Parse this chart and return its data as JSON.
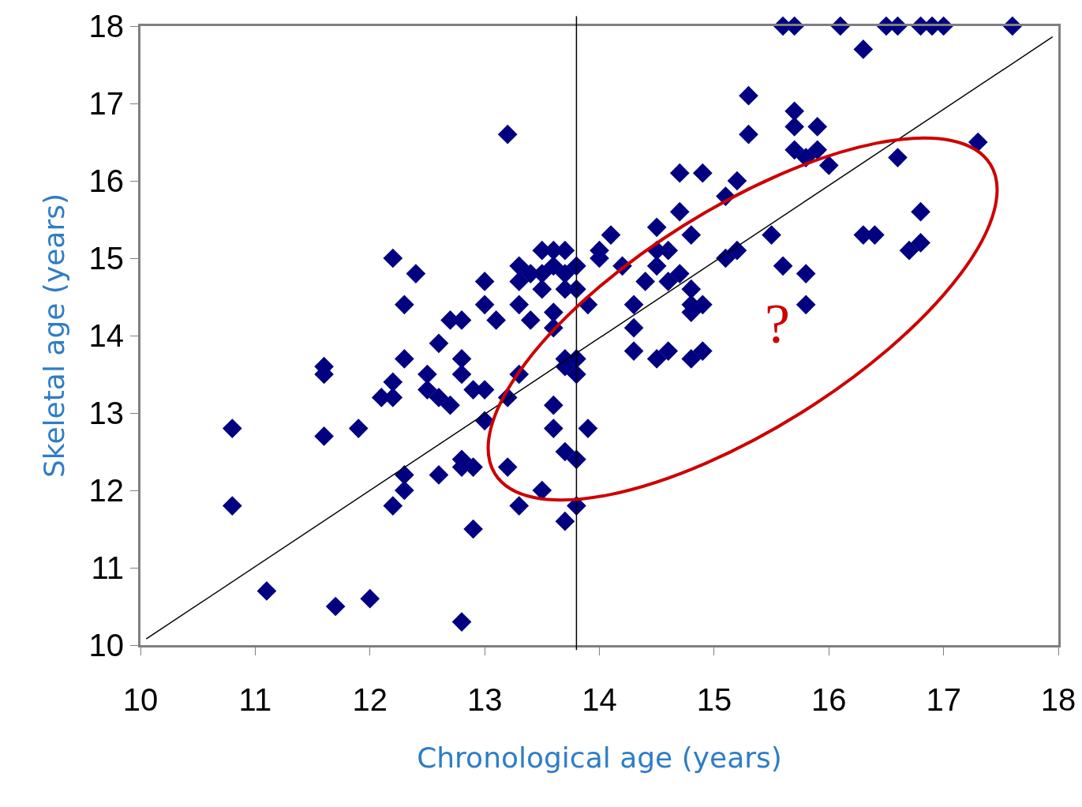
{
  "chart_data": {
    "type": "scatter",
    "xlabel": "Chronological age (years)",
    "ylabel": "Skeletal age (years)",
    "xlim": [
      10,
      18
    ],
    "ylim": [
      10,
      18
    ],
    "xticks": [
      10,
      11,
      12,
      13,
      14,
      15,
      16,
      17,
      18
    ],
    "yticks": [
      10,
      11,
      12,
      13,
      14,
      15,
      16,
      17,
      18
    ],
    "grid": false,
    "annotations": [
      "?"
    ],
    "ref_lines": [
      {
        "axis": "x",
        "value": 13.8,
        "color": "#000000"
      }
    ],
    "series": [
      {
        "color": "#000080",
        "marker": "diamond",
        "x": [
          10.8,
          10.8,
          11.1,
          11.7,
          12.0,
          12.8,
          11.6,
          11.6,
          11.6,
          11.9,
          12.2,
          12.4,
          12.3,
          12.3,
          12.2,
          12.1,
          12.2,
          12.5,
          12.5,
          12.6,
          12.6,
          12.7,
          12.7,
          12.8,
          12.8,
          12.8,
          12.9,
          13.0,
          13.0,
          13.0,
          13.0,
          13.1,
          13.2,
          13.2,
          13.3,
          13.3,
          13.3,
          13.3,
          13.4,
          13.5,
          13.4,
          13.5,
          13.6,
          13.7,
          13.6,
          13.5,
          13.6,
          13.6,
          13.7,
          13.7,
          13.8,
          13.8,
          13.7,
          13.7,
          13.8,
          13.8,
          13.6,
          13.6,
          13.7,
          13.8,
          13.9,
          13.2,
          13.5,
          13.3,
          13.7,
          13.8,
          12.9,
          12.3,
          12.3,
          12.2,
          12.6,
          12.8,
          12.8,
          12.9,
          14.0,
          14.0,
          14.1,
          13.9,
          14.2,
          14.3,
          14.3,
          14.3,
          14.4,
          14.5,
          14.5,
          14.5,
          14.6,
          14.6,
          14.7,
          14.5,
          14.6,
          14.8,
          14.8,
          14.8,
          14.9,
          14.8,
          14.9,
          14.7,
          14.7,
          14.8,
          14.9,
          15.1,
          15.1,
          15.2,
          15.2,
          15.3,
          15.3,
          15.5,
          15.6,
          15.7,
          15.7,
          15.7,
          15.8,
          15.8,
          15.8,
          15.9,
          15.9,
          16.0,
          16.3,
          16.4,
          16.3,
          16.6,
          16.7,
          16.8,
          16.8,
          17.3,
          15.6,
          15.7,
          16.1,
          16.5,
          16.6,
          16.8,
          16.9,
          17.0,
          17.6
        ],
        "values": [
          12.8,
          11.8,
          10.7,
          10.5,
          10.6,
          10.3,
          12.7,
          13.6,
          13.5,
          12.8,
          15.0,
          14.8,
          14.4,
          13.7,
          13.4,
          13.2,
          13.2,
          13.5,
          13.3,
          13.9,
          13.2,
          13.1,
          14.2,
          14.2,
          13.7,
          13.5,
          13.3,
          13.3,
          12.9,
          14.7,
          14.4,
          14.2,
          16.6,
          13.2,
          13.5,
          14.9,
          14.7,
          14.4,
          14.2,
          15.1,
          14.8,
          14.8,
          15.1,
          15.1,
          14.9,
          14.6,
          14.3,
          14.1,
          14.6,
          14.8,
          14.9,
          14.6,
          13.7,
          13.6,
          13.7,
          13.5,
          13.1,
          12.8,
          12.5,
          12.4,
          12.8,
          12.3,
          12.0,
          11.8,
          11.6,
          11.8,
          11.5,
          12.2,
          12.0,
          11.8,
          12.2,
          12.4,
          12.3,
          12.3,
          15.1,
          15.0,
          15.3,
          14.4,
          14.9,
          14.1,
          14.4,
          13.8,
          14.7,
          15.4,
          15.1,
          14.9,
          15.1,
          14.7,
          14.8,
          13.7,
          13.8,
          13.7,
          14.4,
          14.3,
          14.4,
          14.6,
          13.8,
          15.6,
          16.1,
          15.3,
          16.1,
          15.8,
          15.0,
          16.0,
          15.1,
          17.1,
          16.6,
          15.3,
          14.9,
          16.9,
          16.7,
          16.4,
          14.8,
          14.4,
          16.3,
          16.7,
          16.4,
          16.2,
          15.3,
          15.3,
          17.7,
          16.3,
          15.1,
          15.6,
          15.2,
          16.5,
          18,
          18,
          18,
          18,
          18,
          18,
          18,
          18,
          18
        ]
      },
      {
        "type": "line",
        "color": "#000000",
        "x": [
          10.05,
          17.95
        ],
        "values": [
          10.08,
          17.86
        ]
      }
    ]
  }
}
